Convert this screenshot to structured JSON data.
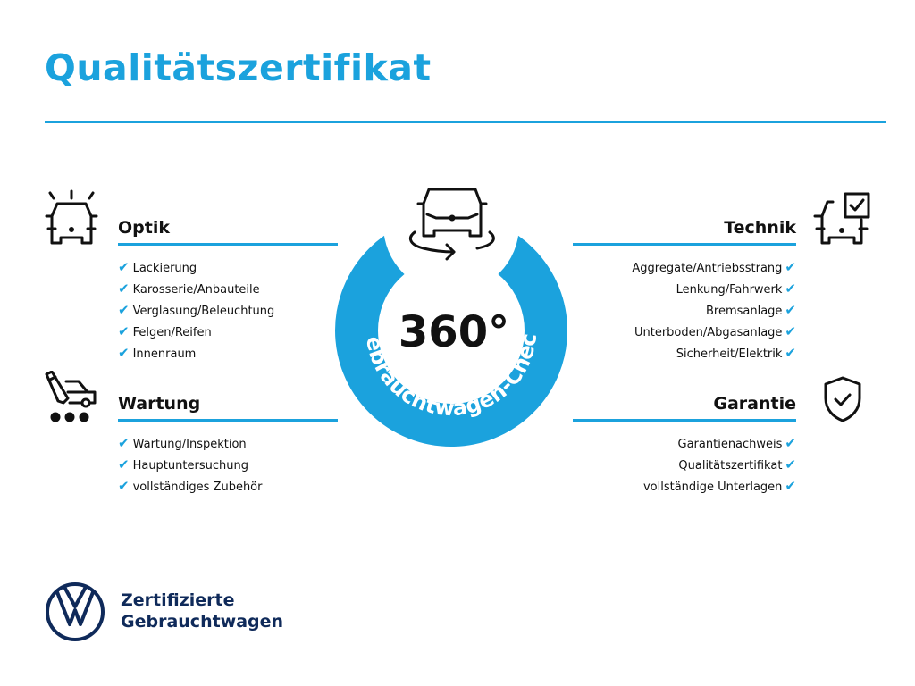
{
  "title": "Qualitätszertifikat",
  "colors": {
    "accent": "#1ba2dd",
    "brand": "#0f2a5a",
    "text": "#111111"
  },
  "center": {
    "big": "360°",
    "ring_text": "Gebrauchtwagen-Check",
    "icon": "car-rotate-icon"
  },
  "sections": {
    "optik": {
      "heading": "Optik",
      "icon": "car-lights-icon",
      "items": [
        "Lackierung",
        "Karosserie/Anbauteile",
        "Verglasung/Beleuchtung",
        "Felgen/Reifen",
        "Innenraum"
      ]
    },
    "wartung": {
      "heading": "Wartung",
      "icon": "service-van-icon",
      "items": [
        "Wartung/Inspektion",
        "Hauptuntersuchung",
        "vollständiges Zubehör"
      ]
    },
    "technik": {
      "heading": "Technik",
      "icon": "car-checkbox-icon",
      "items": [
        "Aggregate/Antriebsstrang",
        "Lenkung/Fahrwerk",
        "Bremsanlage",
        "Unterboden/Abgasanlage",
        "Sicherheit/Elektrik"
      ]
    },
    "garantie": {
      "heading": "Garantie",
      "icon": "shield-check-icon",
      "items": [
        "Garantienachweis",
        "Qualitätszertifikat",
        "vollständige Unterlagen"
      ]
    }
  },
  "check_glyph": "✔",
  "brand": {
    "line1": "Zertifizierte",
    "line2": "Gebrauchtwagen",
    "logo": "vw-logo"
  }
}
